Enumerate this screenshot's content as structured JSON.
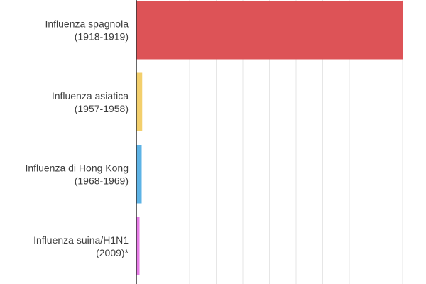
{
  "chart_data": {
    "type": "bar",
    "orientation": "horizontal",
    "categories": [
      [
        "Influenza spagnola",
        "(1918-1919)"
      ],
      [
        "Influenza asiatica",
        "(1957-1958)"
      ],
      [
        "Influenza di Hong Kong",
        "(1968-1969)"
      ],
      [
        "Influenza suina/H1N1",
        "(2009)*"
      ]
    ],
    "values": [
      50,
      1.1,
      1.0,
      0.6
    ],
    "colors": [
      "#dd5357",
      "#f3cf6c",
      "#5db3e6",
      "#e67ae6"
    ],
    "xlim": [
      0,
      50
    ],
    "grid": true,
    "gridline_color": "#e6e6e6",
    "axis_color": "#333333",
    "text_color": "#3c3c3c"
  }
}
